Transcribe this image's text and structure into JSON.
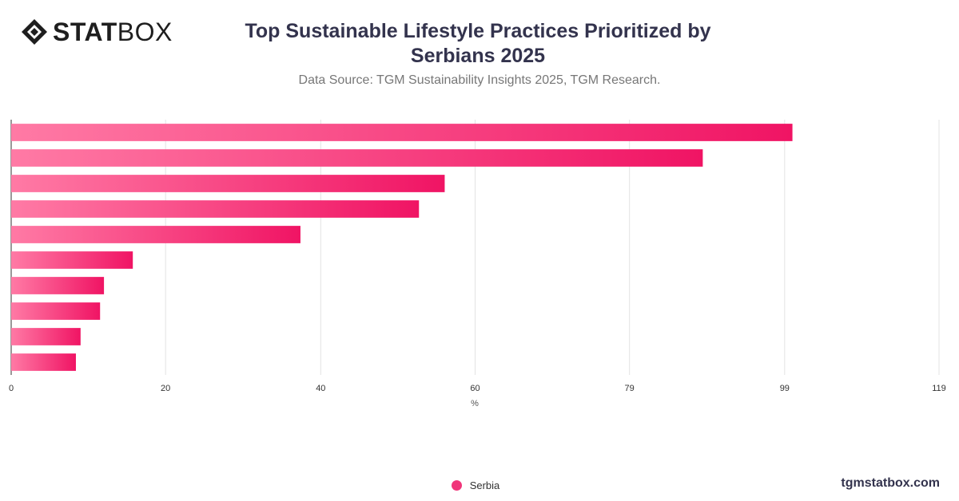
{
  "logo": {
    "bold": "STAT",
    "light": "BOX"
  },
  "website": "tgmstatbox.com",
  "chart_data": {
    "type": "bar",
    "orientation": "horizontal",
    "title": "Top Sustainable Lifestyle Practices Prioritized by Serbians 2025",
    "subtitle": "Data Source: TGM Sustainability Insights 2025, TGM Research.",
    "xlabel": "%",
    "xlim": [
      0,
      119
    ],
    "x_ticks": [
      0,
      20,
      40,
      60,
      79,
      99,
      119
    ],
    "x_tick_values": [
      0,
      19.8,
      39.7,
      59.5,
      79.3,
      99.2,
      119
    ],
    "grid": true,
    "legend_position": "bottom-center",
    "categories": [
      "",
      "",
      "",
      "",
      "",
      "",
      "",
      "",
      "",
      ""
    ],
    "series": [
      {
        "name": "Serbia",
        "color": "#f0357a",
        "values": [
          100.2,
          88.7,
          55.6,
          52.3,
          37.1,
          15.6,
          11.9,
          11.4,
          8.9,
          8.3
        ]
      }
    ]
  }
}
